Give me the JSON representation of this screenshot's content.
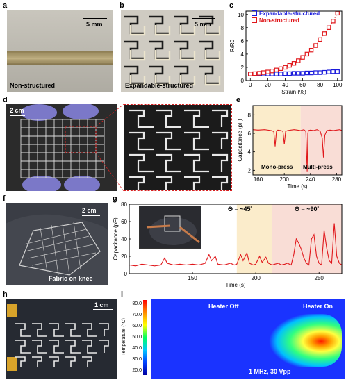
{
  "panels": {
    "a": {
      "letter": "a",
      "scale": "5 mm",
      "caption": "Non-structured"
    },
    "b": {
      "letter": "b",
      "scale": "5 mm",
      "caption": "Expandable-structured"
    },
    "c": {
      "letter": "c"
    },
    "d": {
      "letter": "d",
      "scale": "2 cm"
    },
    "e": {
      "letter": "e",
      "left_label": "Mono-press",
      "right_label": "Multi-press"
    },
    "f": {
      "letter": "f",
      "scale": "2 cm",
      "caption": "Fabric on knee"
    },
    "g": {
      "letter": "g",
      "angle1": "Θ = ~45˚",
      "angle2": "Θ = ~90˚"
    },
    "h": {
      "letter": "h",
      "scale": "1 cm"
    },
    "i": {
      "letter": "i",
      "heater_off": "Heater Off",
      "heater_on": "Heater On",
      "condition": "1 MHz, 30 Vpp",
      "colorbar_title": "Temperature (°C)",
      "colorbar_ticks": [
        "80.0",
        "70.0",
        "60.0",
        "50.0",
        "40.0",
        "30.0",
        "20.0"
      ]
    }
  },
  "colors": {
    "blue": "#1a1adb",
    "red": "#e0171b",
    "yellow_bg": "#fbeccb",
    "pink_bg": "#f9ddd6"
  },
  "chart_data": [
    {
      "id": "c",
      "type": "line",
      "xlabel": "Strain (%)",
      "ylabel": "R/R0",
      "xlim": [
        -5,
        105
      ],
      "ylim": [
        0,
        10.5
      ],
      "xticks": [
        0,
        20,
        40,
        60,
        80,
        100
      ],
      "yticks": [
        0,
        2,
        4,
        6,
        8,
        10
      ],
      "legend_position": "top-left",
      "series": [
        {
          "name": "Expandable-structured",
          "color": "#1a1adb",
          "x": [
            0,
            5,
            10,
            15,
            20,
            25,
            30,
            35,
            40,
            45,
            50,
            55,
            60,
            65,
            70,
            75,
            80,
            85,
            90,
            95,
            100
          ],
          "y": [
            1.0,
            1.0,
            1.0,
            1.0,
            1.0,
            1.0,
            1.0,
            1.0,
            1.05,
            1.05,
            1.1,
            1.1,
            1.1,
            1.15,
            1.15,
            1.2,
            1.2,
            1.25,
            1.3,
            1.35,
            1.35
          ]
        },
        {
          "name": "Non-structured",
          "color": "#e0171b",
          "x": [
            0,
            5,
            10,
            15,
            20,
            25,
            30,
            35,
            40,
            45,
            50,
            55,
            60,
            65,
            70,
            75,
            80,
            85,
            90,
            95,
            100
          ],
          "y": [
            1.0,
            1.05,
            1.1,
            1.2,
            1.3,
            1.45,
            1.6,
            1.8,
            2.0,
            2.3,
            2.6,
            3.0,
            3.5,
            4.0,
            4.6,
            5.3,
            6.2,
            7.1,
            8.0,
            9.0,
            10.2
          ]
        }
      ]
    },
    {
      "id": "e",
      "type": "line",
      "xlabel": "Time (s)",
      "ylabel": "Capacitance (pF)",
      "xlim": [
        152,
        288
      ],
      "ylim": [
        1.5,
        9
      ],
      "xticks": [
        160,
        200,
        240,
        280
      ],
      "yticks": [
        2,
        4,
        6,
        8
      ],
      "shaded_regions": [
        [
          152,
          225,
          "#fbeccb"
        ],
        [
          225,
          288,
          "#f9ddd6"
        ]
      ],
      "series": [
        {
          "name": "",
          "color": "#e0171b",
          "x": [
            152,
            160,
            170,
            180,
            184,
            186,
            188,
            190,
            195,
            198,
            200,
            202,
            205,
            210,
            215,
            220,
            225,
            230,
            233,
            235,
            236,
            237,
            240,
            245,
            250,
            255,
            258,
            260,
            262,
            265,
            270,
            275,
            280,
            285,
            288
          ],
          "y": [
            6.4,
            6.35,
            6.4,
            6.3,
            6.2,
            4.6,
            6.2,
            6.35,
            6.3,
            6.2,
            4.8,
            6.2,
            6.3,
            6.35,
            6.4,
            6.35,
            6.3,
            6.4,
            6.2,
            1.9,
            6.0,
            6.3,
            6.35,
            6.3,
            6.4,
            6.2,
            5.5,
            3.4,
            5.8,
            6.3,
            6.35,
            6.3,
            6.35,
            6.4,
            6.3
          ]
        }
      ]
    },
    {
      "id": "g",
      "type": "line",
      "xlabel": "Time (s)",
      "ylabel": "Capacitance (pF)",
      "xlim": [
        100,
        268
      ],
      "ylim": [
        0,
        80
      ],
      "xticks": [
        150,
        200,
        250
      ],
      "yticks": [
        0,
        20,
        40,
        60,
        80
      ],
      "shaded_regions": [
        [
          185,
          213,
          "#fbeccb"
        ],
        [
          213,
          268,
          "#f9ddd6"
        ]
      ],
      "series": [
        {
          "name": "",
          "color": "#e0171b",
          "x": [
            100,
            105,
            110,
            115,
            120,
            125,
            128,
            130,
            135,
            140,
            145,
            150,
            155,
            160,
            163,
            165,
            168,
            170,
            175,
            180,
            183,
            185,
            188,
            190,
            193,
            195,
            198,
            200,
            203,
            205,
            208,
            210,
            213,
            215,
            218,
            220,
            223,
            225,
            228,
            230,
            232,
            234,
            236,
            238,
            240,
            242,
            244,
            246,
            248,
            250,
            252,
            254,
            256,
            258,
            260,
            262,
            264,
            266,
            268
          ],
          "y": [
            10,
            9,
            11,
            10,
            9,
            10,
            18,
            12,
            10,
            11,
            10,
            11,
            10,
            12,
            22,
            15,
            20,
            11,
            10,
            12,
            10,
            11,
            22,
            15,
            24,
            12,
            10,
            11,
            20,
            13,
            19,
            12,
            10,
            11,
            12,
            10,
            11,
            12,
            10,
            22,
            40,
            35,
            28,
            18,
            12,
            10,
            40,
            45,
            20,
            12,
            10,
            50,
            30,
            15,
            12,
            58,
            20,
            12,
            10
          ]
        }
      ]
    }
  ]
}
